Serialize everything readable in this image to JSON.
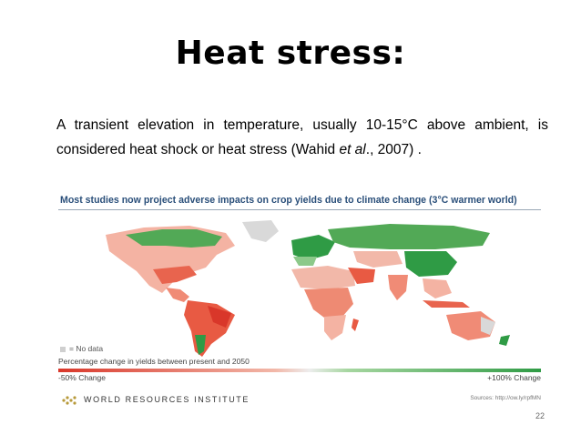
{
  "slide": {
    "title": "Heat stress:",
    "body_part1": "A transient elevation in temperature, usually 10-15°C above ambient, is considered heat shock or heat stress (Wahid ",
    "body_italic": "et al",
    "body_part2": "., 2007)  .",
    "page_number": "22"
  },
  "figure": {
    "title": "Most studies now project adverse impacts on crop yields due to climate change (3°C warmer world)",
    "no_data_label": "= No data",
    "legend_title": "Percentage change in yields between present and 2050",
    "legend_min": "-50% Change",
    "legend_max": "+100% Change",
    "org": "WORLD RESOURCES INSTITUTE",
    "source": "Sources: http://ow.ly/rpfMN",
    "colors": {
      "decline": "#d9372a",
      "increase": "#2f9b45",
      "no_data": "#cfcfcf"
    }
  }
}
